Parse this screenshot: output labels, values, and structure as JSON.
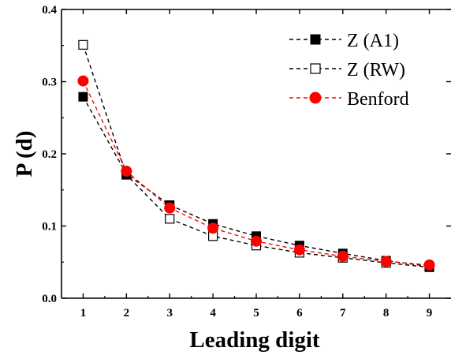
{
  "chart_data": {
    "type": "line",
    "title": "",
    "xlabel": "Leading digit",
    "ylabel": "P (d)",
    "x": [
      1,
      2,
      3,
      4,
      5,
      6,
      7,
      8,
      9
    ],
    "xlim": [
      0.5,
      9.5
    ],
    "ylim": [
      0,
      0.4
    ],
    "x_ticks": [
      "1",
      "2",
      "3",
      "4",
      "5",
      "6",
      "7",
      "8",
      "9"
    ],
    "y_ticks": [
      "0.0",
      "0.1",
      "0.2",
      "0.3",
      "0.4"
    ],
    "grid": false,
    "legend_position": "top-right",
    "series": [
      {
        "name": "Z (A1)",
        "marker": "filled-square",
        "line_style": "dashed",
        "color": "#000000",
        "values": [
          0.279,
          0.172,
          0.129,
          0.103,
          0.086,
          0.073,
          0.062,
          0.052,
          0.044
        ]
      },
      {
        "name": "Z (RW)",
        "marker": "open-square",
        "line_style": "dashed",
        "color": "#000000",
        "values": [
          0.351,
          0.171,
          0.11,
          0.086,
          0.073,
          0.063,
          0.056,
          0.049,
          0.043
        ]
      },
      {
        "name": "Benford",
        "marker": "filled-circle",
        "line_style": "dashed",
        "color": "#ff0000",
        "values": [
          0.301,
          0.176,
          0.125,
          0.097,
          0.079,
          0.067,
          0.058,
          0.051,
          0.046
        ]
      }
    ]
  }
}
